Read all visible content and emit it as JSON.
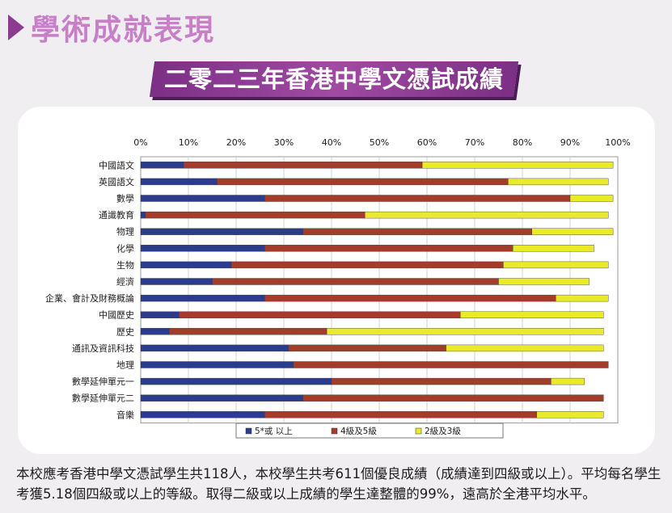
{
  "section_title": "學術成就表現",
  "banner_title": "二零二三年香港中學文憑試成績",
  "chart_data": {
    "type": "bar",
    "orientation": "horizontal",
    "stacked": true,
    "percent_axis": true,
    "xlim": [
      0,
      100
    ],
    "x_ticks": [
      "0%",
      "10%",
      "20%",
      "30%",
      "40%",
      "50%",
      "60%",
      "70%",
      "80%",
      "90%",
      "100%"
    ],
    "categories": [
      "中國語文",
      "英國語文",
      "數學",
      "通識教育",
      "物理",
      "化學",
      "生物",
      "經濟",
      "企業、會計及財務概論",
      "中國歷史",
      "歷史",
      "通訊及資訊科技",
      "地理",
      "數學延伸單元一",
      "數學延伸單元二",
      "音樂"
    ],
    "series": [
      {
        "name": "5*或 以上",
        "color": "#2b3c8f",
        "values": [
          9,
          16,
          26,
          1,
          34,
          26,
          19,
          15,
          26,
          8,
          6,
          31,
          32,
          40,
          34,
          26
        ]
      },
      {
        "name": "4級及5級",
        "color": "#a33d2a",
        "values": [
          50,
          61,
          64,
          46,
          48,
          52,
          57,
          60,
          61,
          59,
          33,
          33,
          66,
          46,
          63,
          57
        ]
      },
      {
        "name": "2級及3級",
        "color": "#e8ea2a",
        "values": [
          40,
          21,
          9,
          51,
          17,
          17,
          22,
          19,
          11,
          30,
          58,
          33,
          0,
          7,
          0,
          14
        ]
      }
    ],
    "legend_position": "bottom",
    "grid": true
  },
  "note": "本校應考香港中學文憑試學生共118人，本校學生共考611個優良成績（成績達到四級或以上）。平均每名學生考獲5.18個四級或以上的等級。取得二級或以上成績的學生達整體的99%，遠高於全港平均水平。"
}
